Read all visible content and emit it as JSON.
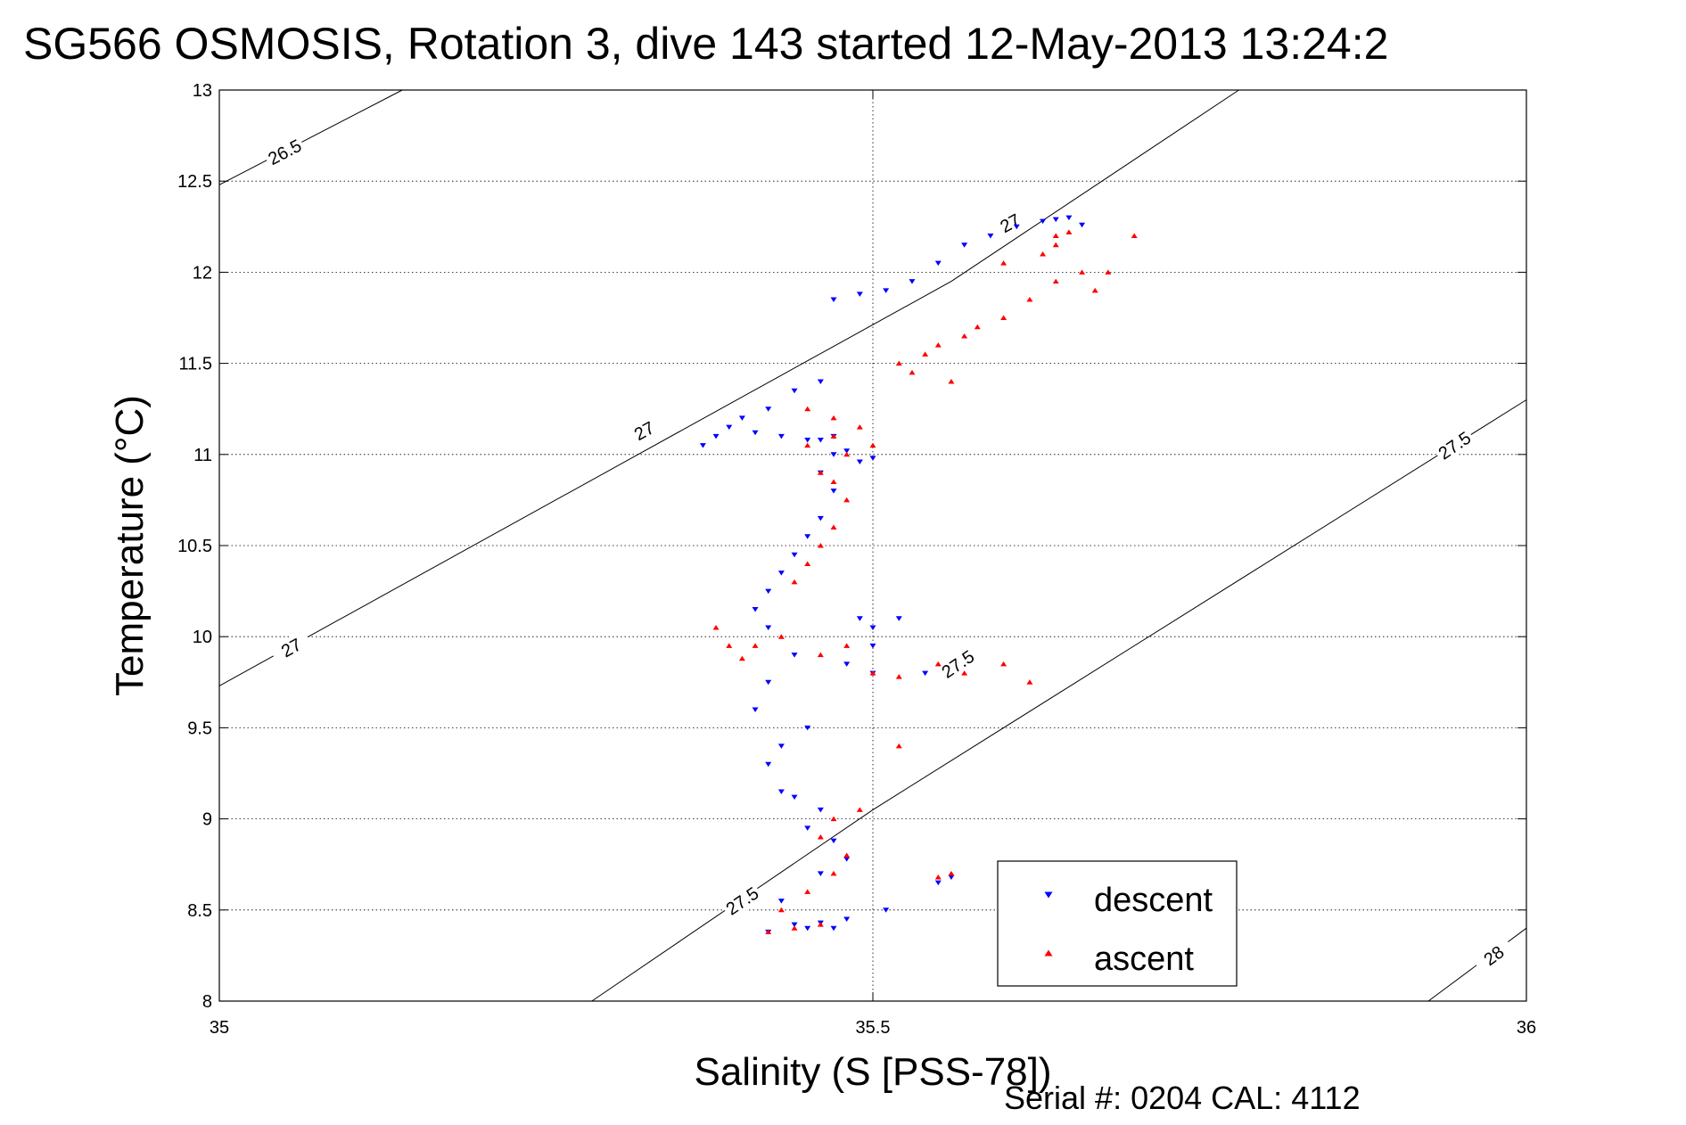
{
  "chart_data": {
    "type": "scatter",
    "title": "SG566 OSMOSIS, Rotation 3, dive 143 started 12-May-2013 13:24:2",
    "xlabel": "Salinity (S [PSS-78])",
    "ylabel": "Temperature (°C)",
    "xlim": [
      35,
      36
    ],
    "ylim": [
      8,
      13
    ],
    "xticks": [
      "35",
      "35.5",
      "36"
    ],
    "yticks": [
      "8",
      "8.5",
      "9",
      "9.5",
      "10",
      "10.5",
      "11",
      "11.5",
      "12",
      "12.5",
      "13"
    ],
    "grid": true,
    "legend_position": "bottom-right",
    "footer": "Serial #: 0204  CAL: 4112",
    "isopycnals": [
      {
        "label": "26.5",
        "points": [
          [
            35.0,
            12.48
          ],
          [
            35.14,
            13.0
          ]
        ],
        "labels_at": [
          [
            35.05,
            12.66
          ]
        ]
      },
      {
        "label": "27",
        "points": [
          [
            35.0,
            9.73
          ],
          [
            35.56,
            11.95
          ],
          [
            35.78,
            13.0
          ]
        ],
        "labels_at": [
          [
            35.055,
            9.94
          ],
          [
            35.325,
            11.13
          ],
          [
            35.605,
            12.27
          ]
        ]
      },
      {
        "label": "27.5",
        "points": [
          [
            35.285,
            8.0
          ],
          [
            35.5,
            9.05
          ],
          [
            36.0,
            11.3
          ]
        ],
        "labels_at": [
          [
            35.4,
            8.55
          ],
          [
            35.565,
            9.85
          ],
          [
            35.945,
            11.05
          ]
        ]
      },
      {
        "label": "28",
        "points": [
          [
            35.925,
            8.0
          ],
          [
            36.0,
            8.4
          ]
        ],
        "labels_at": [
          [
            35.975,
            8.25
          ]
        ]
      }
    ],
    "series": [
      {
        "name": "descent",
        "color": "#0000ff",
        "marker": "triangle-down",
        "points": [
          [
            35.47,
            8.4
          ],
          [
            35.46,
            8.43
          ],
          [
            35.45,
            8.4
          ],
          [
            35.44,
            8.42
          ],
          [
            35.48,
            8.45
          ],
          [
            35.42,
            8.38
          ],
          [
            35.51,
            8.5
          ],
          [
            35.43,
            8.55
          ],
          [
            35.46,
            8.7
          ],
          [
            35.48,
            8.78
          ],
          [
            35.47,
            8.88
          ],
          [
            35.45,
            8.95
          ],
          [
            35.46,
            9.05
          ],
          [
            35.44,
            9.12
          ],
          [
            35.43,
            9.15
          ],
          [
            35.42,
            9.3
          ],
          [
            35.43,
            9.4
          ],
          [
            35.45,
            9.5
          ],
          [
            35.41,
            9.6
          ],
          [
            35.42,
            9.75
          ],
          [
            35.44,
            9.9
          ],
          [
            35.42,
            10.05
          ],
          [
            35.41,
            10.15
          ],
          [
            35.42,
            10.25
          ],
          [
            35.43,
            10.35
          ],
          [
            35.44,
            10.45
          ],
          [
            35.45,
            10.55
          ],
          [
            35.46,
            10.65
          ],
          [
            35.47,
            10.8
          ],
          [
            35.46,
            10.9
          ],
          [
            35.47,
            11.0
          ],
          [
            35.45,
            11.08
          ],
          [
            35.43,
            11.1
          ],
          [
            35.41,
            11.12
          ],
          [
            35.39,
            11.15
          ],
          [
            35.38,
            11.1
          ],
          [
            35.37,
            11.05
          ],
          [
            35.4,
            11.2
          ],
          [
            35.42,
            11.25
          ],
          [
            35.44,
            11.35
          ],
          [
            35.46,
            11.4
          ],
          [
            35.5,
            10.98
          ],
          [
            35.49,
            10.96
          ],
          [
            35.48,
            11.02
          ],
          [
            35.47,
            11.1
          ],
          [
            35.46,
            11.08
          ],
          [
            35.49,
            10.1
          ],
          [
            35.5,
            10.05
          ],
          [
            35.52,
            10.1
          ],
          [
            35.5,
            9.95
          ],
          [
            35.48,
            9.85
          ],
          [
            35.5,
            9.8
          ],
          [
            35.54,
            9.8
          ],
          [
            35.55,
            8.65
          ],
          [
            35.56,
            8.68
          ],
          [
            35.51,
            11.9
          ],
          [
            35.49,
            11.88
          ],
          [
            35.47,
            11.85
          ],
          [
            35.53,
            11.95
          ],
          [
            35.55,
            12.05
          ],
          [
            35.57,
            12.15
          ],
          [
            35.59,
            12.2
          ],
          [
            35.61,
            12.25
          ],
          [
            35.63,
            12.28
          ],
          [
            35.65,
            12.3
          ],
          [
            35.66,
            12.26
          ],
          [
            35.64,
            12.29
          ]
        ]
      },
      {
        "name": "ascent",
        "color": "#ff0000",
        "marker": "triangle-up",
        "points": [
          [
            35.42,
            8.38
          ],
          [
            35.44,
            8.4
          ],
          [
            35.46,
            8.42
          ],
          [
            35.43,
            8.5
          ],
          [
            35.45,
            8.6
          ],
          [
            35.47,
            8.7
          ],
          [
            35.48,
            8.8
          ],
          [
            35.46,
            8.9
          ],
          [
            35.47,
            9.0
          ],
          [
            35.49,
            9.05
          ],
          [
            35.52,
            9.4
          ],
          [
            35.55,
            8.68
          ],
          [
            35.56,
            8.7
          ],
          [
            35.4,
            9.88
          ],
          [
            35.39,
            9.95
          ],
          [
            35.38,
            10.05
          ],
          [
            35.41,
            9.95
          ],
          [
            35.43,
            10.0
          ],
          [
            35.46,
            9.9
          ],
          [
            35.48,
            9.95
          ],
          [
            35.5,
            9.8
          ],
          [
            35.52,
            9.78
          ],
          [
            35.55,
            9.85
          ],
          [
            35.57,
            9.8
          ],
          [
            35.6,
            9.85
          ],
          [
            35.62,
            9.75
          ],
          [
            35.44,
            10.3
          ],
          [
            35.45,
            10.4
          ],
          [
            35.46,
            10.5
          ],
          [
            35.47,
            10.6
          ],
          [
            35.48,
            10.75
          ],
          [
            35.47,
            10.85
          ],
          [
            35.46,
            10.9
          ],
          [
            35.48,
            11.0
          ],
          [
            35.45,
            11.05
          ],
          [
            35.47,
            11.1
          ],
          [
            35.5,
            11.05
          ],
          [
            35.49,
            11.15
          ],
          [
            35.47,
            11.2
          ],
          [
            35.45,
            11.25
          ],
          [
            35.52,
            11.5
          ],
          [
            35.54,
            11.55
          ],
          [
            35.55,
            11.6
          ],
          [
            35.57,
            11.65
          ],
          [
            35.53,
            11.45
          ],
          [
            35.56,
            11.4
          ],
          [
            35.58,
            11.7
          ],
          [
            35.6,
            11.75
          ],
          [
            35.62,
            11.85
          ],
          [
            35.64,
            11.95
          ],
          [
            35.66,
            12.0
          ],
          [
            35.68,
            12.0
          ],
          [
            35.67,
            11.9
          ],
          [
            35.6,
            12.05
          ],
          [
            35.63,
            12.1
          ],
          [
            35.64,
            12.2
          ],
          [
            35.64,
            12.15
          ],
          [
            35.65,
            12.22
          ],
          [
            35.7,
            12.2
          ]
        ]
      }
    ]
  }
}
